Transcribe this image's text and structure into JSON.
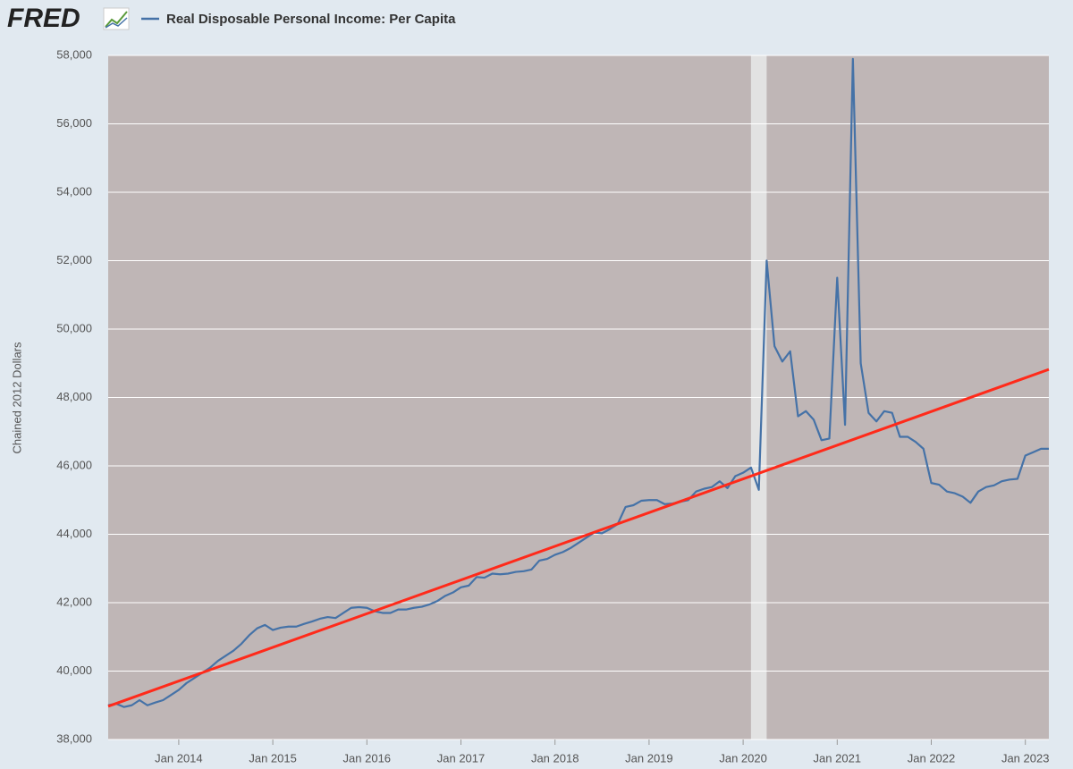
{
  "chart_data": {
    "type": "line",
    "logo": "FRED",
    "ylabel": "Chained 2012 Dollars",
    "x": [
      "2013-04",
      "2013-05",
      "2013-06",
      "2013-07",
      "2013-08",
      "2013-09",
      "2013-10",
      "2013-11",
      "2013-12",
      "2014-01",
      "2014-02",
      "2014-03",
      "2014-04",
      "2014-05",
      "2014-06",
      "2014-07",
      "2014-08",
      "2014-09",
      "2014-10",
      "2014-11",
      "2014-12",
      "2015-01",
      "2015-02",
      "2015-03",
      "2015-04",
      "2015-05",
      "2015-06",
      "2015-07",
      "2015-08",
      "2015-09",
      "2015-10",
      "2015-11",
      "2015-12",
      "2016-01",
      "2016-02",
      "2016-03",
      "2016-04",
      "2016-05",
      "2016-06",
      "2016-07",
      "2016-08",
      "2016-09",
      "2016-10",
      "2016-11",
      "2016-12",
      "2017-01",
      "2017-02",
      "2017-03",
      "2017-04",
      "2017-05",
      "2017-06",
      "2017-07",
      "2017-08",
      "2017-09",
      "2017-10",
      "2017-11",
      "2017-12",
      "2018-01",
      "2018-02",
      "2018-03",
      "2018-04",
      "2018-05",
      "2018-06",
      "2018-07",
      "2018-08",
      "2018-09",
      "2018-10",
      "2018-11",
      "2018-12",
      "2019-01",
      "2019-02",
      "2019-03",
      "2019-04",
      "2019-05",
      "2019-06",
      "2019-07",
      "2019-08",
      "2019-09",
      "2019-10",
      "2019-11",
      "2019-12",
      "2020-01",
      "2020-02",
      "2020-03",
      "2020-04",
      "2020-05",
      "2020-06",
      "2020-07",
      "2020-08",
      "2020-09",
      "2020-10",
      "2020-11",
      "2020-12",
      "2021-01",
      "2021-02",
      "2021-03",
      "2021-04",
      "2021-05",
      "2021-06",
      "2021-07",
      "2021-08",
      "2021-09",
      "2021-10",
      "2021-11",
      "2021-12",
      "2022-01",
      "2022-02",
      "2022-03",
      "2022-04",
      "2022-05",
      "2022-06",
      "2022-07",
      "2022-08",
      "2022-09",
      "2022-10",
      "2022-11",
      "2022-12",
      "2023-01",
      "2023-02",
      "2023-03",
      "2023-04"
    ],
    "series": [
      {
        "name": "Real Disposable Personal Income: Per Capita",
        "color": "#4572a7",
        "values": [
          39000,
          39050,
          38950,
          39000,
          39150,
          39000,
          39080,
          39150,
          39300,
          39450,
          39650,
          39800,
          39950,
          40100,
          40300,
          40450,
          40600,
          40800,
          41050,
          41250,
          41350,
          41200,
          41270,
          41300,
          41300,
          41380,
          41450,
          41530,
          41580,
          41550,
          41700,
          41850,
          41870,
          41850,
          41750,
          41700,
          41700,
          41800,
          41800,
          41850,
          41880,
          41950,
          42050,
          42200,
          42300,
          42450,
          42500,
          42750,
          42730,
          42850,
          42830,
          42850,
          42900,
          42920,
          42970,
          43230,
          43280,
          43400,
          43480,
          43600,
          43750,
          43900,
          44050,
          44030,
          44150,
          44300,
          44800,
          44850,
          44980,
          45000,
          45000,
          44880,
          44900,
          44950,
          45000,
          45250,
          45330,
          45380,
          45550,
          45350,
          45700,
          45800,
          45950,
          45300,
          52000,
          49500,
          49050,
          49350,
          47450,
          47600,
          47350,
          46750,
          46800,
          51500,
          47200,
          57900,
          49000,
          47550,
          47300,
          47600,
          47550,
          46850,
          46850,
          46700,
          46500,
          45500,
          45450,
          45250,
          45200,
          45100,
          44920,
          45250,
          45380,
          45430,
          45550,
          45600,
          45620,
          46300,
          46400,
          46500,
          46500
        ]
      }
    ],
    "trend": {
      "x": [
        "2013-04",
        "2023-04"
      ],
      "values": [
        38970,
        48820
      ],
      "color": "#ff2a1a"
    },
    "recessions": [
      {
        "start": "2020-02",
        "end": "2020-04"
      }
    ],
    "xlim": [
      "2013-04",
      "2023-04"
    ],
    "xticks": [
      {
        "value": "2014-01",
        "label": "Jan 2014"
      },
      {
        "value": "2015-01",
        "label": "Jan 2015"
      },
      {
        "value": "2016-01",
        "label": "Jan 2016"
      },
      {
        "value": "2017-01",
        "label": "Jan 2017"
      },
      {
        "value": "2018-01",
        "label": "Jan 2018"
      },
      {
        "value": "2019-01",
        "label": "Jan 2019"
      },
      {
        "value": "2020-01",
        "label": "Jan 2020"
      },
      {
        "value": "2021-01",
        "label": "Jan 2021"
      },
      {
        "value": "2022-01",
        "label": "Jan 2022"
      },
      {
        "value": "2023-01",
        "label": "Jan 2023"
      }
    ],
    "ylim": [
      38000,
      58000
    ],
    "yticks": [
      {
        "value": 38000,
        "label": "38,000"
      },
      {
        "value": 40000,
        "label": "40,000"
      },
      {
        "value": 42000,
        "label": "42,000"
      },
      {
        "value": 44000,
        "label": "44,000"
      },
      {
        "value": 46000,
        "label": "46,000"
      },
      {
        "value": 48000,
        "label": "48,000"
      },
      {
        "value": 50000,
        "label": "50,000"
      },
      {
        "value": 52000,
        "label": "52,000"
      },
      {
        "value": 54000,
        "label": "54,000"
      },
      {
        "value": 56000,
        "label": "56,000"
      },
      {
        "value": 58000,
        "label": "58,000"
      }
    ],
    "grid": true,
    "plot_background": "#bfb6b6",
    "recession_color": "#e2e2e2"
  }
}
